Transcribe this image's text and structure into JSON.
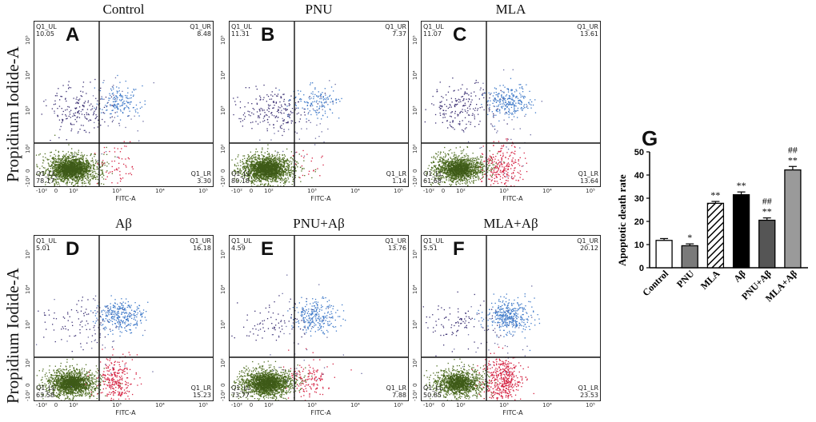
{
  "figure": {
    "y_axis_label": "Propidium Iodide-A",
    "x_axis_label": "FITC-A",
    "x_ticks": [
      "-10²",
      "0",
      "10²",
      "10³",
      "10⁴",
      "10⁵"
    ],
    "y_ticks": [
      "-10²",
      "0",
      "10²",
      "10³",
      "10⁴",
      "10⁵"
    ]
  },
  "panels": [
    {
      "letter": "A",
      "title": "Control",
      "quadrants": {
        "UL": {
          "label": "Q1_UL",
          "value": "10.05"
        },
        "UR": {
          "label": "Q1_UR",
          "value": "8.48"
        },
        "LL": {
          "label": "Q1_LL",
          "value": "78.17"
        },
        "LR": {
          "label": "Q1_LR",
          "value": "3.30"
        }
      }
    },
    {
      "letter": "B",
      "title": "PNU",
      "quadrants": {
        "UL": {
          "label": "Q1_UL",
          "value": "11.31"
        },
        "UR": {
          "label": "Q1_UR",
          "value": "7.37"
        },
        "LL": {
          "label": "Q1_LL",
          "value": "80.18"
        },
        "LR": {
          "label": "Q1_LR",
          "value": "1.14"
        }
      }
    },
    {
      "letter": "C",
      "title": "MLA",
      "quadrants": {
        "UL": {
          "label": "Q1_UL",
          "value": "11.07"
        },
        "UR": {
          "label": "Q1_UR",
          "value": "13.61"
        },
        "LL": {
          "label": "Q1_LL",
          "value": "61.68"
        },
        "LR": {
          "label": "Q1_LR",
          "value": "13.64"
        }
      }
    },
    {
      "letter": "D",
      "title": "Aβ",
      "quadrants": {
        "UL": {
          "label": "Q1_UL",
          "value": "5.01"
        },
        "UR": {
          "label": "Q1_UR",
          "value": "16.18"
        },
        "LL": {
          "label": "Q1_LL",
          "value": "63.58"
        },
        "LR": {
          "label": "Q1_LR",
          "value": "15.23"
        }
      }
    },
    {
      "letter": "E",
      "title": "PNU+Aβ",
      "quadrants": {
        "UL": {
          "label": "Q1_UL",
          "value": "4.59"
        },
        "UR": {
          "label": "Q1_UR",
          "value": "13.76"
        },
        "LL": {
          "label": "Q1_LL",
          "value": "73.77"
        },
        "LR": {
          "label": "Q1_LR",
          "value": "7.88"
        }
      }
    },
    {
      "letter": "F",
      "title": "MLA+Aβ",
      "quadrants": {
        "UL": {
          "label": "Q1_UL",
          "value": "5.51"
        },
        "UR": {
          "label": "Q1_UR",
          "value": "20.12"
        },
        "LL": {
          "label": "Q1_LL",
          "value": "50.85"
        },
        "LR": {
          "label": "Q1_LR",
          "value": "23.53"
        }
      }
    }
  ],
  "colors": {
    "ll_cluster": "#4f6e22",
    "lr_cluster": "#d42040",
    "ul_cluster": "#3a2f72",
    "ur_cluster": "#3c78c8",
    "bar_outline": "#000000"
  },
  "chart_data": {
    "type": "bar",
    "letter": "G",
    "title": "",
    "xlabel": "",
    "ylabel": "Apoptotic death rate",
    "ylim": [
      0,
      50
    ],
    "yticks": [
      "0",
      "10",
      "20",
      "30",
      "40",
      "50"
    ],
    "categories": [
      "Control",
      "PNU",
      "MLA",
      "Aβ",
      "PNU+Aβ",
      "MLA+Aβ"
    ],
    "values": [
      11.8,
      9.5,
      27.8,
      31.5,
      20.5,
      42.2
    ],
    "errors": [
      0.8,
      0.8,
      0.8,
      1.2,
      1.0,
      1.5
    ],
    "fills": [
      "#ffffff",
      "#7a7a7a",
      "hatch",
      "#000000",
      "#555555",
      "#9a9a9a"
    ],
    "annotations": [
      [],
      [
        "*"
      ],
      [
        "**"
      ],
      [
        "**"
      ],
      [
        "##",
        "**"
      ],
      [
        "##",
        "**"
      ]
    ]
  }
}
